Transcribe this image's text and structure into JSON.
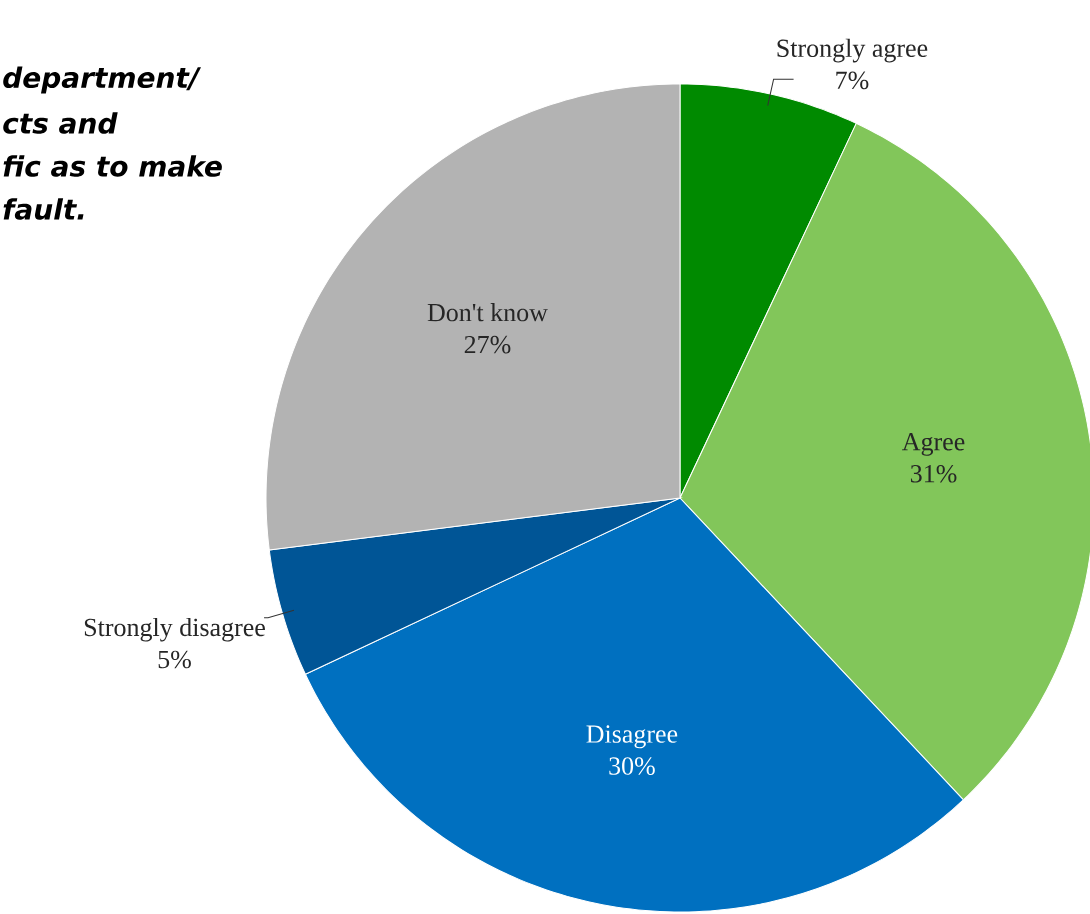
{
  "chart_data": {
    "type": "pie",
    "annotations": [
      "department/",
      "cts and",
      "fic as to make",
      "fault."
    ],
    "categories": [
      "Strongly agree",
      "Agree",
      "Disagree",
      "Strongly disagree",
      "Don't know"
    ],
    "values": [
      7,
      31,
      30,
      5,
      27
    ],
    "value_labels": [
      "7%",
      "31%",
      "30%",
      "5%",
      "27%"
    ],
    "colors": [
      "#008a00",
      "#82c65a",
      "#0070c0",
      "#005596",
      "#b3b3b3"
    ]
  }
}
